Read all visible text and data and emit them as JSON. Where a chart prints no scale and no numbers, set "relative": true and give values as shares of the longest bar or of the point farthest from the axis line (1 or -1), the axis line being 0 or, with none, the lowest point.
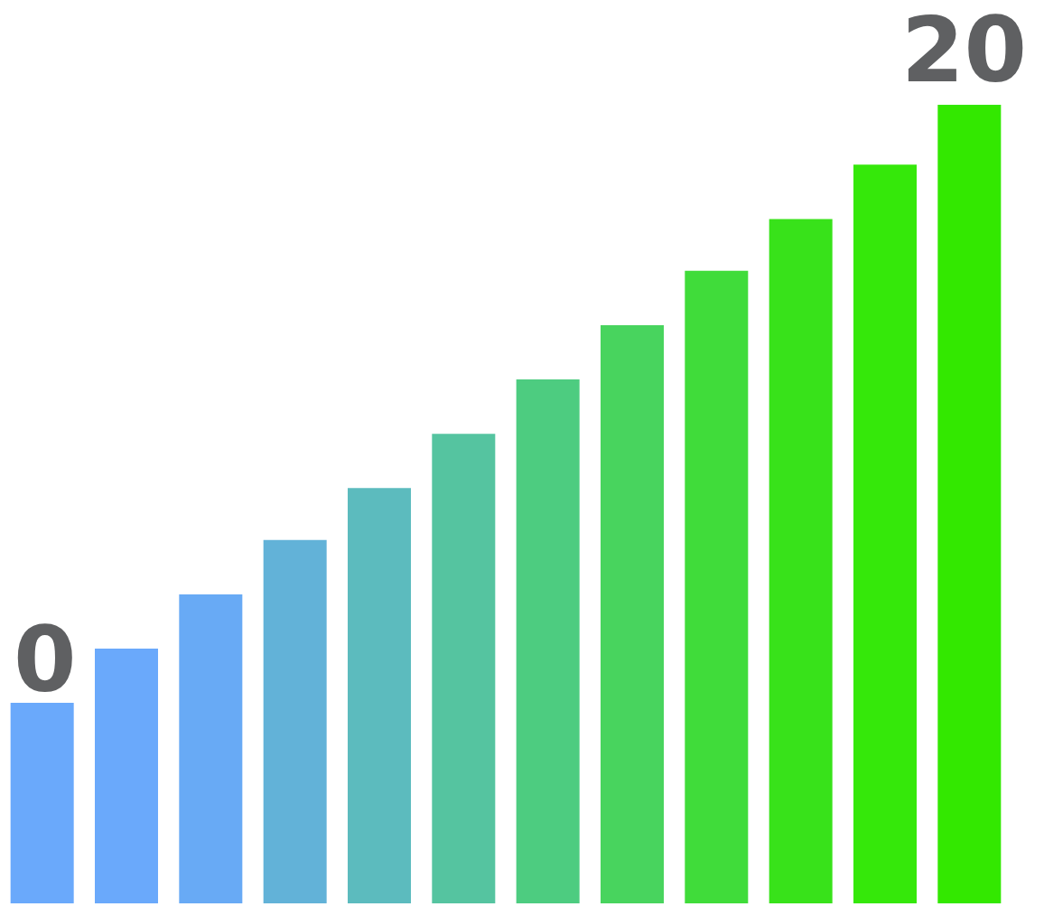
{
  "chart_data": {
    "type": "bar",
    "relative": true,
    "categories": [
      null,
      null,
      null,
      null,
      null,
      null,
      null,
      null,
      null,
      null,
      null,
      null
    ],
    "values": [
      0.251,
      0.319,
      0.387,
      0.455,
      0.52,
      0.588,
      0.656,
      0.724,
      0.792,
      0.857,
      0.925,
      1.0
    ],
    "colors": [
      "#6aa9fb",
      "#6aa9fb",
      "#68aaf5",
      "#62b2d8",
      "#5cbbbe",
      "#55c4a0",
      "#4dcc80",
      "#48d45e",
      "#40dc3a",
      "#38e21a",
      "#35e80a",
      "#33e800"
    ],
    "annotations": [
      "0",
      "20"
    ]
  }
}
